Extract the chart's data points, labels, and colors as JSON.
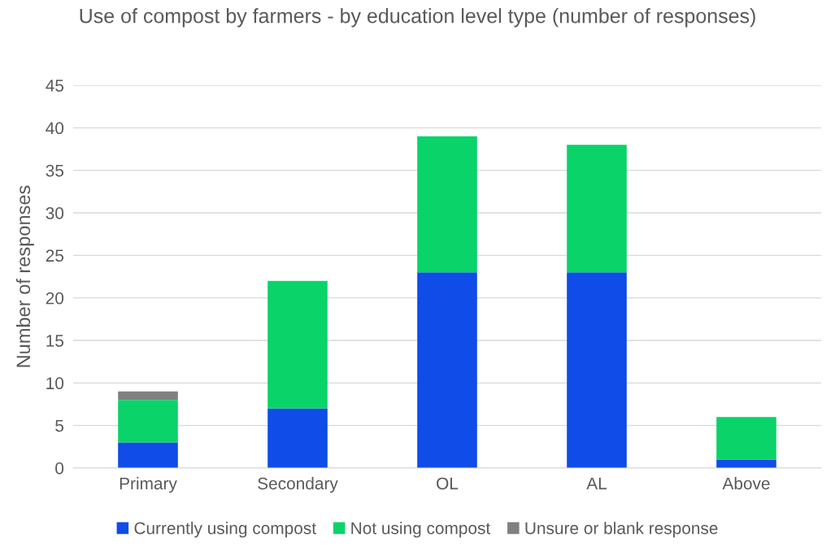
{
  "chart_data": {
    "type": "bar",
    "stacked": true,
    "title": "Use of compost by farmers - by education level type (number of responses)",
    "ylabel": "Number of responses",
    "categories": [
      "Primary",
      "Secondary",
      "OL",
      "AL",
      "Above"
    ],
    "series": [
      {
        "name": "Currently using compost",
        "color": "#0f4ce8",
        "values": [
          3,
          7,
          23,
          23,
          1
        ]
      },
      {
        "name": "Not using compost",
        "color": "#0ad36a",
        "values": [
          5,
          15,
          16,
          15,
          5
        ]
      },
      {
        "name": "Unsure or blank response",
        "color": "#808080",
        "values": [
          1,
          0,
          0,
          0,
          0
        ]
      }
    ],
    "ylim": [
      0,
      45
    ],
    "yticks": [
      0,
      5,
      10,
      15,
      20,
      25,
      30,
      35,
      40,
      45
    ],
    "grid": "y",
    "legend": "bottom"
  }
}
